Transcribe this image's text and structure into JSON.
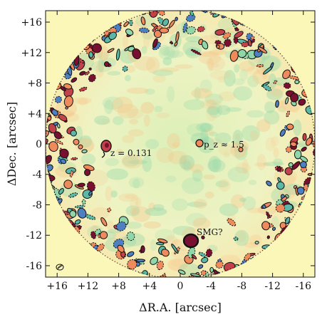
{
  "figure": {
    "x_axis_label": "ΔR.A. [arcsec]",
    "y_axis_label": "ΔDec. [arcsec]",
    "x_ticks": [
      16,
      12,
      8,
      4,
      0,
      -4,
      -8,
      -12,
      -16
    ],
    "y_ticks": [
      16,
      12,
      8,
      4,
      0,
      -4,
      -8,
      -12,
      -16
    ],
    "x_tick_labels": [
      "+16",
      "+12",
      "+8",
      "+4",
      "0",
      "-4",
      "-8",
      "-12",
      "-16"
    ],
    "y_tick_labels": [
      "+16",
      "+12",
      "+8",
      "+4",
      "0",
      "-4",
      "-8",
      "-12",
      "-16"
    ],
    "x_range": [
      17.5,
      -17.5
    ],
    "y_range": [
      -17.5,
      17.5
    ],
    "background_color": "#fbf7c0",
    "annotations": [
      {
        "id": "z-label",
        "text": "z = 0.131"
      },
      {
        "id": "pz-label",
        "text": "p_z ≈ 1.5"
      },
      {
        "id": "smg-label",
        "text": "SMG?"
      }
    ]
  },
  "colors": {
    "outside": "#fbf7b8",
    "field_base": "#f3f4c8",
    "pos_low": "#f6c48a",
    "pos_mid": "#ee8a5c",
    "pos_high": "#c2424a",
    "pos_peak": "#7a1030",
    "neg_low": "#8fd6a8",
    "neg_mid": "#5bb7a6",
    "neg_high": "#4e7fc0"
  }
}
